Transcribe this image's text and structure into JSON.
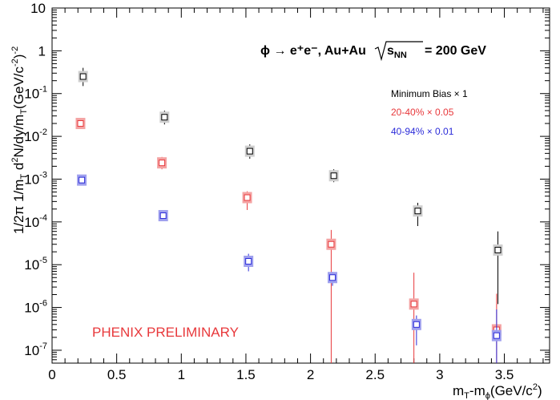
{
  "chart_data": {
    "type": "scatter",
    "title": "ϕ → e⁺e⁻, Au+Au √sNN = 200 GeV",
    "title_parts": {
      "reaction": "ϕ → e⁺e⁻, Au+Au",
      "sqrt_s": "s",
      "sqrt_sub": "NN",
      "energy": "= 200 GeV"
    },
    "xlabel": "mT-mϕ(GeV/c²)",
    "ylabel": "1/2π  1/mT d²N/dy/mT(GeV/c²)⁻²",
    "xlim": [
      0,
      3.85
    ],
    "ylim": [
      5e-08,
      10
    ],
    "yscale": "log",
    "x_ticks": [
      {
        "value": 0,
        "label": "0"
      },
      {
        "value": 0.5,
        "label": "0.5"
      },
      {
        "value": 1,
        "label": "1"
      },
      {
        "value": 1.5,
        "label": "1.5"
      },
      {
        "value": 2,
        "label": "2"
      },
      {
        "value": 2.5,
        "label": "2.5"
      },
      {
        "value": 3,
        "label": "3"
      },
      {
        "value": 3.5,
        "label": "3.5"
      }
    ],
    "y_ticks": [
      {
        "value": 1e-07,
        "base": "10",
        "exp": "-7"
      },
      {
        "value": 1e-06,
        "base": "10",
        "exp": "-6"
      },
      {
        "value": 1e-05,
        "base": "10",
        "exp": "-5"
      },
      {
        "value": 0.0001,
        "base": "10",
        "exp": "-4"
      },
      {
        "value": 0.001,
        "base": "10",
        "exp": "-3"
      },
      {
        "value": 0.01,
        "base": "10",
        "exp": "-2"
      },
      {
        "value": 0.1,
        "base": "10",
        "exp": "-1"
      },
      {
        "value": 1,
        "base": "1",
        "exp": ""
      },
      {
        "value": 10,
        "base": "10",
        "exp": ""
      }
    ],
    "series": [
      {
        "name": "Minimum Bias × 1",
        "color": "#000000",
        "fill": "#cfcfcf",
        "points": [
          {
            "x": 0.24,
            "y": 0.25,
            "lo": 0.15,
            "hi": 0.4
          },
          {
            "x": 0.87,
            "y": 0.028,
            "lo": 0.019,
            "hi": 0.04
          },
          {
            "x": 1.53,
            "y": 0.0045,
            "lo": 0.003,
            "hi": 0.0065
          },
          {
            "x": 2.18,
            "y": 0.0012,
            "lo": 0.00085,
            "hi": 0.0017
          },
          {
            "x": 2.83,
            "y": 0.00018,
            "lo": 8e-05,
            "hi": 0.00028
          },
          {
            "x": 3.45,
            "y": 2.2e-05,
            "lo": 1.2e-06,
            "hi": 6e-05
          }
        ]
      },
      {
        "name": "20-40% × 0.05",
        "color": "#e8383b",
        "fill": "#f4a3a3",
        "points": [
          {
            "x": 0.22,
            "y": 0.02,
            "lo": 0.015,
            "hi": 0.026
          },
          {
            "x": 0.85,
            "y": 0.0024,
            "lo": 0.0017,
            "hi": 0.0033
          },
          {
            "x": 1.51,
            "y": 0.00037,
            "lo": 0.00019,
            "hi": 0.00052
          },
          {
            "x": 2.16,
            "y": 3e-05,
            "lo": 5e-08,
            "hi": 6.5e-05
          },
          {
            "x": 2.8,
            "y": 1.2e-06,
            "lo": 5e-08,
            "hi": 6.5e-06
          },
          {
            "x": 3.44,
            "y": 3e-07,
            "lo": 5e-08,
            "hi": 2.1e-06
          }
        ]
      },
      {
        "name": "40-94% × 0.01",
        "color": "#2b2bd9",
        "fill": "#9fa0ee",
        "points": [
          {
            "x": 0.23,
            "y": 0.00095,
            "lo": 0.00085,
            "hi": 0.00105
          },
          {
            "x": 0.86,
            "y": 0.00014,
            "lo": 0.00012,
            "hi": 0.00016
          },
          {
            "x": 1.52,
            "y": 1.2e-05,
            "lo": 7e-06,
            "hi": 1.8e-05
          },
          {
            "x": 2.17,
            "y": 5e-06,
            "lo": 3.2e-06,
            "hi": 6.8e-06
          },
          {
            "x": 2.82,
            "y": 4e-07,
            "lo": 1.3e-07,
            "hi": 6.5e-07
          },
          {
            "x": 3.44,
            "y": 2.2e-07,
            "lo": 5e-08,
            "hi": 9e-07
          }
        ]
      }
    ],
    "annotations": [
      "PHENIX PRELIMINARY"
    ]
  }
}
